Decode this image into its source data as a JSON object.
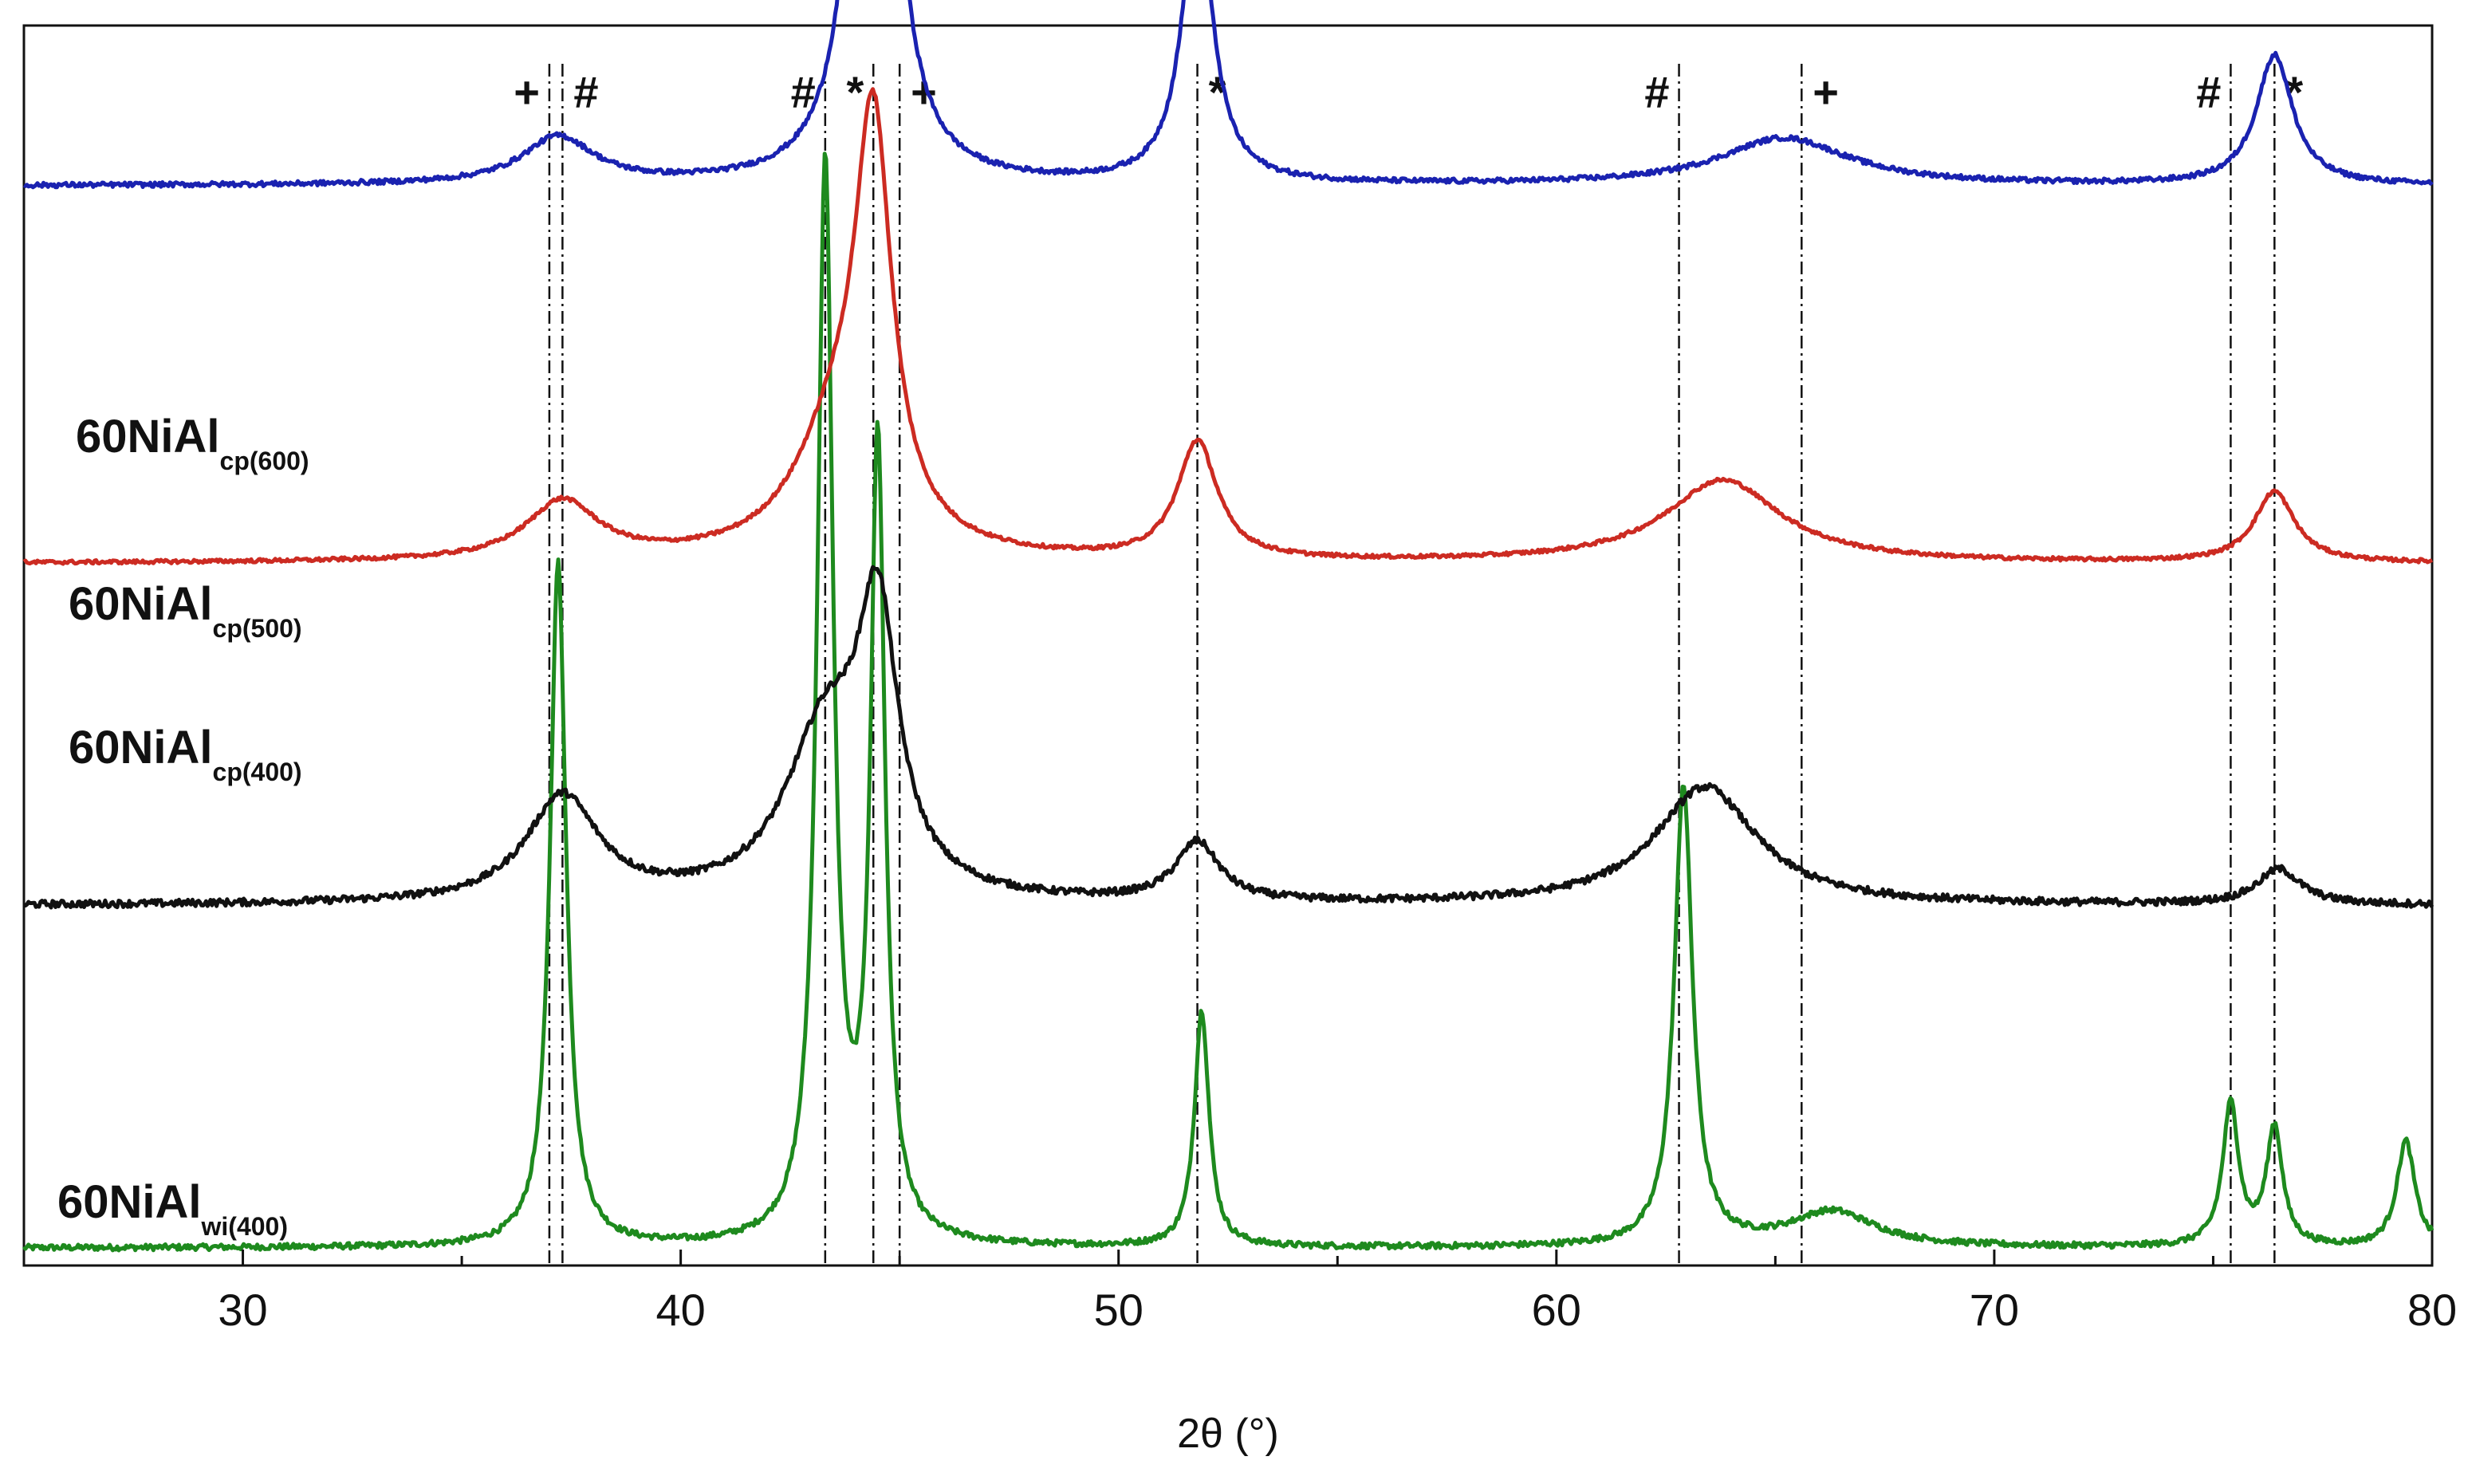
{
  "chart_data": {
    "type": "line",
    "title": "",
    "xlabel": "2θ (°)",
    "ylabel": "",
    "xlim": [
      25,
      80
    ],
    "ylim": [
      0,
      100
    ],
    "x_ticks": [
      30,
      40,
      50,
      60,
      70,
      80
    ],
    "x_minor_ticks": [
      35,
      45,
      55,
      65,
      75
    ],
    "series": [
      {
        "name": "60NiAl_wi(400)",
        "label_main": "60NiAl",
        "label_sub": "wi(400)",
        "color": "#1e8a1e",
        "baseline": 1,
        "noise": 0.25,
        "peaks": [
          {
            "center": 37.2,
            "height": 58,
            "width": 0.22
          },
          {
            "center": 43.3,
            "height": 91,
            "width": 0.22
          },
          {
            "center": 44.5,
            "height": 67,
            "width": 0.2
          },
          {
            "center": 51.9,
            "height": 20,
            "width": 0.2
          },
          {
            "center": 62.9,
            "height": 39,
            "width": 0.25
          },
          {
            "center": 66.3,
            "height": 3,
            "width": 1.2
          },
          {
            "center": 75.4,
            "height": 12,
            "width": 0.22
          },
          {
            "center": 76.4,
            "height": 10,
            "width": 0.22
          },
          {
            "center": 79.4,
            "height": 9,
            "width": 0.25
          }
        ]
      },
      {
        "name": "60NiAl_cp(400)",
        "label_main": "60NiAl",
        "label_sub": "cp(400)",
        "color": "#111111",
        "baseline": 30,
        "noise": 0.3,
        "peaks": [
          {
            "center": 37.3,
            "height": 9,
            "width": 1.0
          },
          {
            "center": 43.3,
            "height": 14,
            "width": 1.1
          },
          {
            "center": 44.5,
            "height": 22,
            "width": 0.55
          },
          {
            "center": 51.8,
            "height": 5,
            "width": 0.6
          },
          {
            "center": 63.4,
            "height": 10,
            "width": 1.4
          },
          {
            "center": 76.5,
            "height": 3,
            "width": 0.6
          }
        ]
      },
      {
        "name": "60NiAl_cp(500)",
        "label_main": "60NiAl",
        "label_sub": "cp(500)",
        "color": "#cc2b22",
        "baseline": 59,
        "noise": 0.15,
        "peaks": [
          {
            "center": 37.3,
            "height": 5,
            "width": 1.0
          },
          {
            "center": 43.6,
            "height": 10,
            "width": 1.2
          },
          {
            "center": 44.4,
            "height": 33,
            "width": 0.5
          },
          {
            "center": 51.8,
            "height": 10,
            "width": 0.55
          },
          {
            "center": 63.8,
            "height": 7,
            "width": 1.6
          },
          {
            "center": 76.4,
            "height": 6,
            "width": 0.55
          }
        ]
      },
      {
        "name": "60NiAl_cp(600)",
        "label_main": "60NiAl",
        "label_sub": "cp(600)",
        "color": "#1a22b0",
        "baseline": 91,
        "noise": 0.2,
        "peaks": [
          {
            "center": 37.2,
            "height": 4,
            "width": 1.0
          },
          {
            "center": 44.4,
            "height": 76,
            "width": 0.42
          },
          {
            "center": 51.8,
            "height": 24,
            "width": 0.42
          },
          {
            "center": 65.2,
            "height": 4,
            "width": 1.8
          },
          {
            "center": 76.4,
            "height": 11,
            "width": 0.5
          }
        ]
      }
    ],
    "reference_lines": [
      {
        "x": 37.0,
        "symbol": "+"
      },
      {
        "x": 37.3,
        "symbol": "#"
      },
      {
        "x": 43.3,
        "symbol": "#"
      },
      {
        "x": 44.4,
        "symbol": "*"
      },
      {
        "x": 45.0,
        "symbol": "+"
      },
      {
        "x": 51.8,
        "symbol": "*"
      },
      {
        "x": 62.8,
        "symbol": "#"
      },
      {
        "x": 65.6,
        "symbol": "+"
      },
      {
        "x": 75.4,
        "symbol": "#"
      },
      {
        "x": 76.4,
        "symbol": "*"
      }
    ]
  }
}
